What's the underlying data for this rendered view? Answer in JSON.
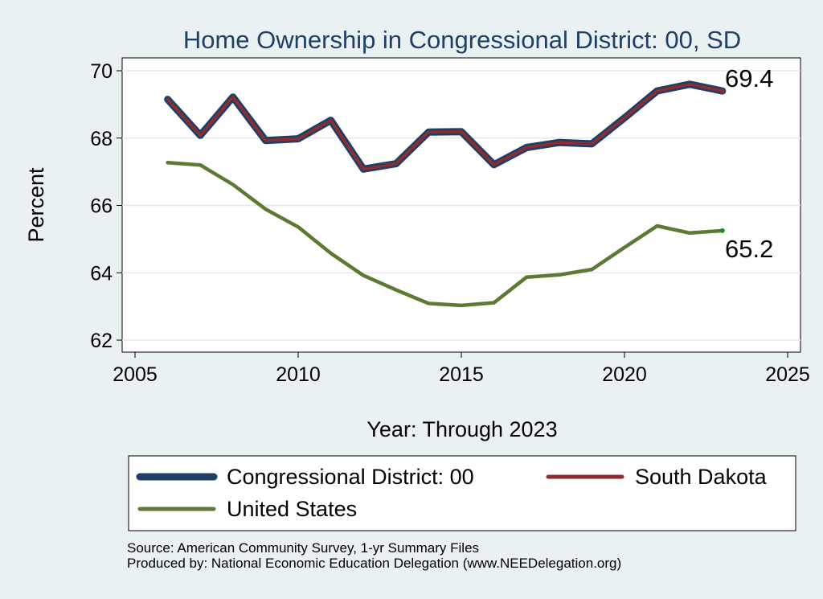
{
  "chart_data": {
    "type": "line",
    "title": "Home Ownership in Congressional District:  00, SD",
    "xlabel": "Year: Through 2023",
    "ylabel": "Percent",
    "xlim": [
      2005,
      2025
    ],
    "ylim": [
      62,
      70
    ],
    "xticks": [
      2005,
      2010,
      2015,
      2020,
      2025
    ],
    "yticks": [
      62,
      64,
      66,
      68,
      70
    ],
    "x": [
      2006,
      2007,
      2008,
      2009,
      2010,
      2011,
      2012,
      2013,
      2014,
      2015,
      2016,
      2017,
      2018,
      2019,
      2020,
      2021,
      2022,
      2023
    ],
    "series": [
      {
        "name": "Congressional District:  00",
        "color": "#1f3f66",
        "values": [
          69.15,
          68.08,
          69.22,
          67.93,
          67.98,
          68.53,
          67.08,
          67.24,
          68.18,
          68.19,
          67.21,
          67.72,
          67.87,
          67.83,
          68.6,
          69.4,
          69.6,
          69.4
        ]
      },
      {
        "name": "South Dakota",
        "color": "#8e2c2f",
        "values": [
          69.15,
          68.08,
          69.22,
          67.93,
          67.98,
          68.53,
          67.08,
          67.24,
          68.18,
          68.19,
          67.21,
          67.72,
          67.87,
          67.83,
          68.6,
          69.4,
          69.6,
          69.4
        ]
      },
      {
        "name": "United States",
        "color": "#5b7a32",
        "values": [
          67.27,
          67.2,
          66.62,
          65.89,
          65.36,
          64.58,
          63.92,
          63.49,
          63.09,
          63.03,
          63.11,
          63.87,
          63.94,
          64.1,
          64.75,
          65.39,
          65.18,
          65.25
        ]
      }
    ],
    "end_labels": [
      {
        "text": "69.4",
        "series": "South Dakota"
      },
      {
        "text": "65.2",
        "series": "United States"
      }
    ],
    "legend_position": "bottom"
  },
  "source": {
    "line1": "Source: American Community Survey, 1-yr Summary Files",
    "line2": "Produced by: National Economic Education Delegation (www.NEEDelegation.org)"
  }
}
